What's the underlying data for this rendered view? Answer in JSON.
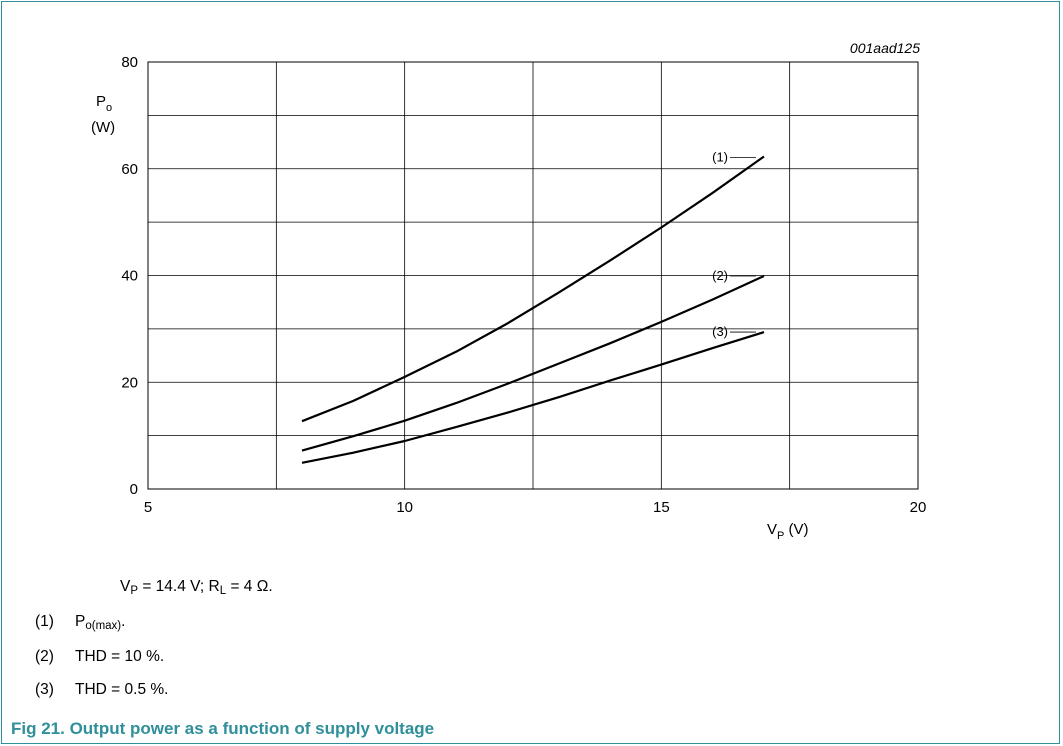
{
  "chart_data": {
    "type": "line",
    "reference_id": "001aad125",
    "ylabel": {
      "symbol": "P",
      "sub": "o",
      "unit": "(W)"
    },
    "xlabel": {
      "symbol": "V",
      "sub": "P",
      "unit": " (V)"
    },
    "xlim": [
      5,
      20
    ],
    "ylim": [
      0,
      80
    ],
    "x_ticks": [
      5,
      10,
      15,
      20
    ],
    "y_ticks": [
      0,
      20,
      40,
      60,
      80
    ],
    "x_grid_step": 2.5,
    "y_grid_step": 10,
    "grid": true,
    "series": [
      {
        "name": "(1)",
        "x": [
          8,
          9,
          10,
          11,
          12,
          13,
          14,
          15,
          16,
          17
        ],
        "values": [
          12.7,
          16.5,
          21,
          25.7,
          31,
          36.8,
          42.8,
          49,
          55.5,
          62.3
        ]
      },
      {
        "name": "(2)",
        "x": [
          8,
          9,
          10,
          11,
          12,
          13,
          14,
          15,
          16,
          17
        ],
        "values": [
          7.2,
          9.9,
          12.8,
          16.1,
          19.7,
          23.5,
          27.3,
          31.3,
          35.5,
          39.9
        ]
      },
      {
        "name": "(3)",
        "x": [
          8,
          9,
          10,
          11,
          12,
          13,
          14,
          15,
          16,
          17
        ],
        "values": [
          4.9,
          6.8,
          9,
          11.6,
          14.3,
          17.2,
          20.3,
          23.3,
          26.4,
          29.4
        ]
      }
    ]
  },
  "notes": {
    "conditions": {
      "vp_symbol": "V",
      "vp_sub": "P",
      "vp_rest": " = 14.4 V; R",
      "rl_sub": "L",
      "rl_rest": " = 4 Ω."
    },
    "legend": [
      {
        "num": "(1)",
        "symbol": "P",
        "sub": "o(max)",
        "rest": "."
      },
      {
        "num": "(2)",
        "text": "THD = 10 %."
      },
      {
        "num": "(3)",
        "text": "THD = 0.5 %."
      }
    ]
  },
  "caption": "Fig 21.  Output power as a function of supply voltage",
  "colors": {
    "accent": "#2f8f9a",
    "line": "#000000"
  }
}
